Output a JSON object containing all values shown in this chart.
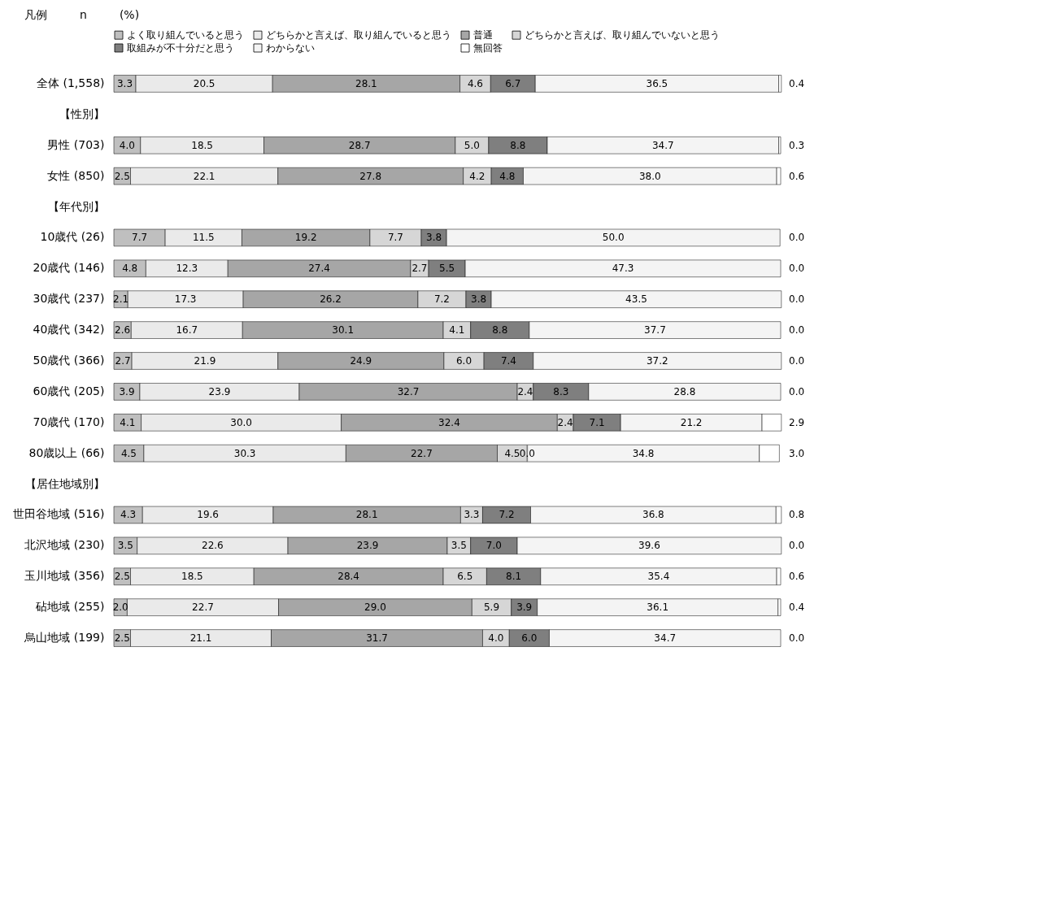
{
  "chart_data": {
    "type": "bar",
    "orientation": "horizontal",
    "stacked": true,
    "legend": "top",
    "grid": false,
    "tick_labels": "y",
    "xlim": [
      0,
      100
    ],
    "annotations": [
      "凡例",
      "n",
      "(%)"
    ],
    "categories": [
      "全体 (1,558)",
      "【性別】",
      "男性 (703)",
      "女性 (850)",
      "【年代別】",
      "10歳代 (26)",
      "20歳代 (146)",
      "30歳代 (237)",
      "40歳代 (342)",
      "50歳代 (366)",
      "60歳代 (205)",
      "70歳代 (170)",
      "80歳以上 (66)",
      "【居住地域別】",
      "世田谷地域 (516)",
      "北沢地域 (230)",
      "玉川地域 (356)",
      "砧地域 (255)",
      "烏山地域 (199)"
    ],
    "series": [
      {
        "name": "よく取り組んでいると思う",
        "color": "#bfbfbf",
        "values": [
          3.3,
          null,
          4.0,
          2.5,
          null,
          7.7,
          4.8,
          2.1,
          2.6,
          2.7,
          3.9,
          4.1,
          4.5,
          null,
          4.3,
          3.5,
          2.5,
          2.0,
          2.5
        ],
        "value_labels": [
          "3.3",
          null,
          "4.0",
          "2.5",
          null,
          "7.7",
          "4.8",
          "2.1",
          "2.6",
          "2.7",
          "3.9",
          "4.1",
          "4.5",
          null,
          "4.3",
          "3.5",
          "2.5",
          "2.0",
          "2.5"
        ]
      },
      {
        "name": "どちらかと言えば、取り組んでいると思う",
        "color": "#eaeaea",
        "values": [
          20.5,
          null,
          18.5,
          22.1,
          null,
          11.5,
          12.3,
          17.3,
          16.7,
          21.9,
          23.9,
          30.0,
          30.3,
          null,
          19.6,
          22.6,
          18.5,
          22.7,
          21.1
        ],
        "value_labels": [
          "20.5",
          null,
          "18.5",
          "22.1",
          null,
          "11.5",
          "12.3",
          "17.3",
          "16.7",
          "21.9",
          "23.9",
          "30.0",
          "30.3",
          null,
          "19.6",
          "22.6",
          "18.5",
          "22.7",
          "21.1"
        ]
      },
      {
        "name": "普通",
        "color": "#a6a6a6",
        "values": [
          28.1,
          null,
          28.7,
          27.8,
          null,
          19.2,
          27.4,
          26.2,
          30.1,
          24.9,
          32.7,
          32.4,
          22.7,
          null,
          28.1,
          23.9,
          28.4,
          29.0,
          31.7
        ],
        "value_labels": [
          "28.1",
          null,
          "28.7",
          "27.8",
          null,
          "19.2",
          "27.4",
          "26.2",
          "30.1",
          "24.9",
          "32.7",
          "32.4",
          "22.7",
          null,
          "28.1",
          "23.9",
          "28.4",
          "29.0",
          "31.7"
        ]
      },
      {
        "name": "どちらかと言えば、取り組んでいないと思う",
        "color": "#d6d6d6",
        "values": [
          4.6,
          null,
          5.0,
          4.2,
          null,
          7.7,
          2.7,
          7.2,
          4.1,
          6.0,
          2.4,
          2.4,
          4.5,
          null,
          3.3,
          3.5,
          6.5,
          5.9,
          4.0
        ],
        "value_labels": [
          "4.6",
          null,
          "5.0",
          "4.2",
          null,
          "7.7",
          "2.7",
          "7.2",
          "4.1",
          "6.0",
          "2.4",
          "2.4",
          "4.5",
          null,
          "3.3",
          "3.5",
          "6.5",
          "5.9",
          "4.0"
        ]
      },
      {
        "name": "取組みが不十分だと思う",
        "color": "#7f7f7f",
        "values": [
          6.7,
          null,
          8.8,
          4.8,
          null,
          3.8,
          5.5,
          3.8,
          8.8,
          7.4,
          8.3,
          7.1,
          0.0,
          null,
          7.2,
          7.0,
          8.1,
          3.9,
          6.0
        ],
        "value_labels": [
          "6.7",
          null,
          "8.8",
          "4.8",
          null,
          "3.8",
          "5.5",
          "3.8",
          "8.8",
          "7.4",
          "8.3",
          "7.1",
          "0.0",
          null,
          "7.2",
          "7.0",
          "8.1",
          "3.9",
          "6.0"
        ]
      },
      {
        "name": "わからない",
        "color": "#f4f4f4",
        "values": [
          36.5,
          null,
          34.7,
          38.0,
          null,
          50.0,
          47.3,
          43.5,
          37.7,
          37.2,
          28.8,
          21.2,
          34.8,
          null,
          36.8,
          39.6,
          35.4,
          36.1,
          34.7
        ],
        "value_labels": [
          "36.5",
          null,
          "34.7",
          "38.0",
          null,
          "50.0",
          "47.3",
          "43.5",
          "37.7",
          "37.2",
          "28.8",
          "21.2",
          "34.8",
          null,
          "36.8",
          "39.6",
          "35.4",
          "36.1",
          "34.7"
        ]
      },
      {
        "name": "無回答",
        "color": "#ffffff",
        "values": [
          0.4,
          null,
          0.3,
          0.6,
          null,
          0.0,
          0.0,
          0.0,
          0.0,
          0.0,
          0.0,
          2.9,
          3.0,
          null,
          0.8,
          0.0,
          0.6,
          0.4,
          0.0
        ],
        "value_labels": [
          "0.4",
          null,
          "0.3",
          "0.6",
          null,
          "0.0",
          "0.0",
          "0.0",
          "0.0",
          "0.0",
          "0.0",
          "2.9",
          "3.0",
          null,
          "0.8",
          "0.0",
          "0.6",
          "0.4",
          "0.0"
        ]
      }
    ]
  }
}
